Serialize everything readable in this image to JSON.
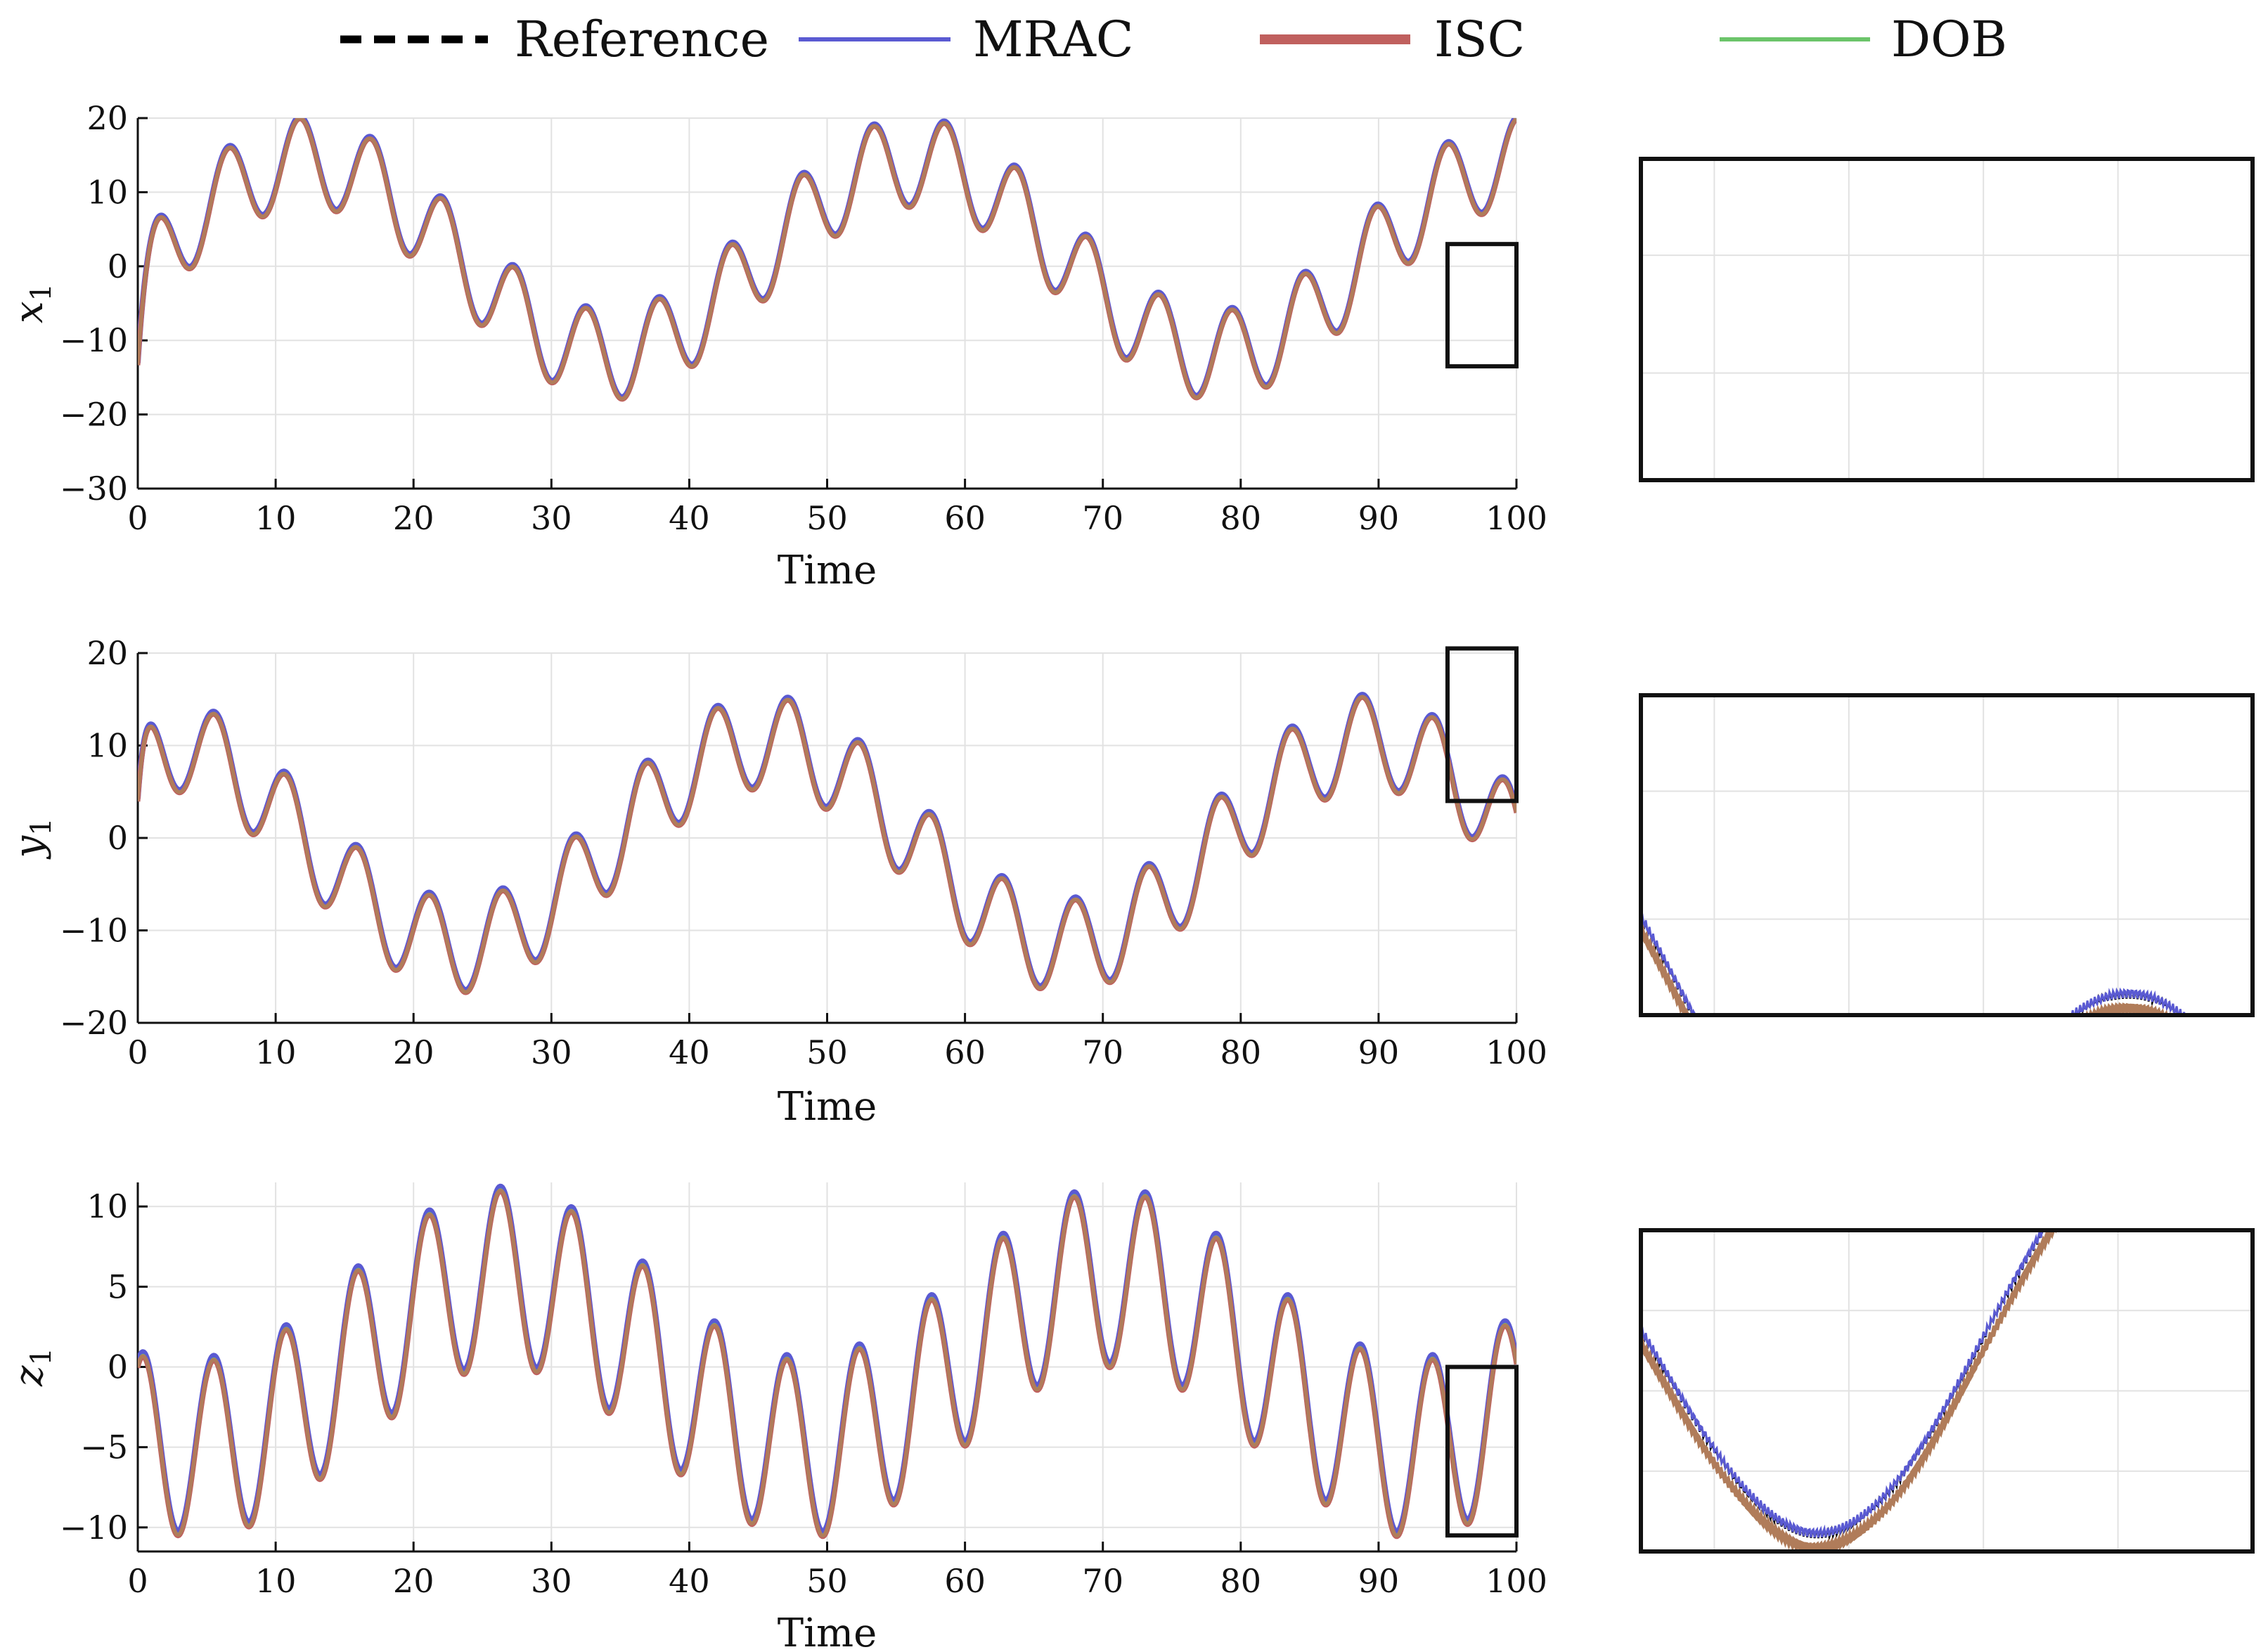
{
  "legend": [
    {
      "name": "Reference",
      "color": "#000000",
      "style": "dashed"
    },
    {
      "name": "MRAC",
      "color": "#5a5ad2",
      "style": "solid"
    },
    {
      "name": "ISC",
      "color": "#c0605e",
      "style": "solid"
    },
    {
      "name": "DOB",
      "color": "#6cc46a",
      "style": "solid"
    }
  ],
  "colors": {
    "reference": "#000000",
    "mrac": "#5a5ad2",
    "isc": "#c0605e",
    "dob": "#6cc46a",
    "combined": "#b07c5a",
    "grid": "#e2e2e2",
    "axis": "#111111"
  },
  "chart_data": [
    {
      "type": "line",
      "id": "x1",
      "ylabel_var": "x",
      "ylabel_sub": "1",
      "xlabel": "Time",
      "xlim": [
        0,
        100
      ],
      "ylim": [
        -30,
        20
      ],
      "xticks": [
        0,
        10,
        20,
        30,
        40,
        50,
        60,
        70,
        80,
        90,
        100
      ],
      "xtick_labels": [
        "0",
        "10",
        "20",
        "30",
        "40",
        "50",
        "60",
        "70",
        "80",
        "90",
        "100"
      ],
      "yticks": [
        -30,
        -20,
        -10,
        0,
        10,
        20
      ],
      "ytick_labels": [
        "−30",
        "−20",
        "−10",
        "0",
        "10",
        "20"
      ],
      "grid": true,
      "series": [
        {
          "name": "Reference",
          "signal": "x"
        },
        {
          "name": "MRAC",
          "signal": "x"
        },
        {
          "name": "ISC",
          "signal": "x"
        },
        {
          "name": "DOB",
          "signal": "x"
        }
      ],
      "zoom_window": {
        "x": [
          95,
          100
        ],
        "y": [
          -13.5,
          3
        ]
      },
      "inset": {
        "x": [
          95,
          100
        ],
        "y": [
          -16,
          -1
        ],
        "grid_x": [
          95.6,
          96.7,
          97.8,
          98.9
        ],
        "grid_y": [
          -5.5,
          -11
        ]
      }
    },
    {
      "type": "line",
      "id": "y1",
      "ylabel_var": "y",
      "ylabel_sub": "1",
      "xlabel": "Time",
      "xlim": [
        0,
        100
      ],
      "ylim": [
        -20,
        20
      ],
      "xticks": [
        0,
        10,
        20,
        30,
        40,
        50,
        60,
        70,
        80,
        90,
        100
      ],
      "xtick_labels": [
        "0",
        "10",
        "20",
        "30",
        "40",
        "50",
        "60",
        "70",
        "80",
        "90",
        "100"
      ],
      "yticks": [
        -20,
        -10,
        0,
        10,
        20
      ],
      "ytick_labels": [
        "−20",
        "−10",
        "0",
        "10",
        "20"
      ],
      "grid": true,
      "series": [
        {
          "name": "Reference",
          "signal": "y"
        },
        {
          "name": "MRAC",
          "signal": "y"
        },
        {
          "name": "ISC",
          "signal": "y"
        },
        {
          "name": "DOB",
          "signal": "y"
        }
      ],
      "zoom_window": {
        "x": [
          95,
          100
        ],
        "y": [
          4,
          20.5
        ]
      },
      "inset": {
        "x": [
          95,
          100
        ],
        "y": [
          6,
          16
        ],
        "grid_x": [
          95.6,
          96.7,
          97.8,
          98.9
        ],
        "grid_y": [
          13,
          9
        ]
      }
    },
    {
      "type": "line",
      "id": "z1",
      "ylabel_var": "z",
      "ylabel_sub": "1",
      "xlabel": "Time",
      "xlim": [
        0,
        100
      ],
      "ylim": [
        -11.5,
        11.5
      ],
      "xticks": [
        0,
        10,
        20,
        30,
        40,
        50,
        60,
        70,
        80,
        90,
        100
      ],
      "xtick_labels": [
        "0",
        "10",
        "20",
        "30",
        "40",
        "50",
        "60",
        "70",
        "80",
        "90",
        "100"
      ],
      "yticks": [
        -10,
        -5,
        0,
        5,
        10
      ],
      "ytick_labels": [
        "−10",
        "−5",
        "0",
        "5",
        "10"
      ],
      "grid": true,
      "series": [
        {
          "name": "Reference",
          "signal": "z"
        },
        {
          "name": "MRAC",
          "signal": "z"
        },
        {
          "name": "ISC",
          "signal": "z"
        },
        {
          "name": "DOB",
          "signal": "z"
        }
      ],
      "zoom_window": {
        "x": [
          95,
          100
        ],
        "y": [
          -10.5,
          0
        ]
      },
      "inset": {
        "x": [
          95,
          100
        ],
        "y": [
          -10,
          0
        ],
        "grid_x": [
          95.6,
          96.7,
          97.8,
          98.9
        ],
        "grid_y": [
          -2.5,
          -5,
          -7.5
        ]
      }
    }
  ],
  "signals": {
    "x": {
      "offset": 1,
      "slow": {
        "amp": 13,
        "period": 44,
        "phase_t": 12.25
      },
      "fast": {
        "amp": 6,
        "period": 5.2,
        "phase_t": 1.35
      },
      "t0": -13.3
    },
    "y": {
      "offset": -0.7,
      "slow": {
        "amp": 11,
        "period": 44,
        "phase_t": 1.4
      },
      "fast": {
        "amp": 5,
        "period": 5.2,
        "phase_t": 0.4
      },
      "t0": 4
    },
    "z": {
      "offset": 0.2,
      "slow": {
        "amp": 5.3,
        "period": 44,
        "phase_t": 26.5
      },
      "fast": {
        "amp": 5.5,
        "period": 5.2,
        "phase_t": 0.3
      },
      "t0": 0
    }
  }
}
